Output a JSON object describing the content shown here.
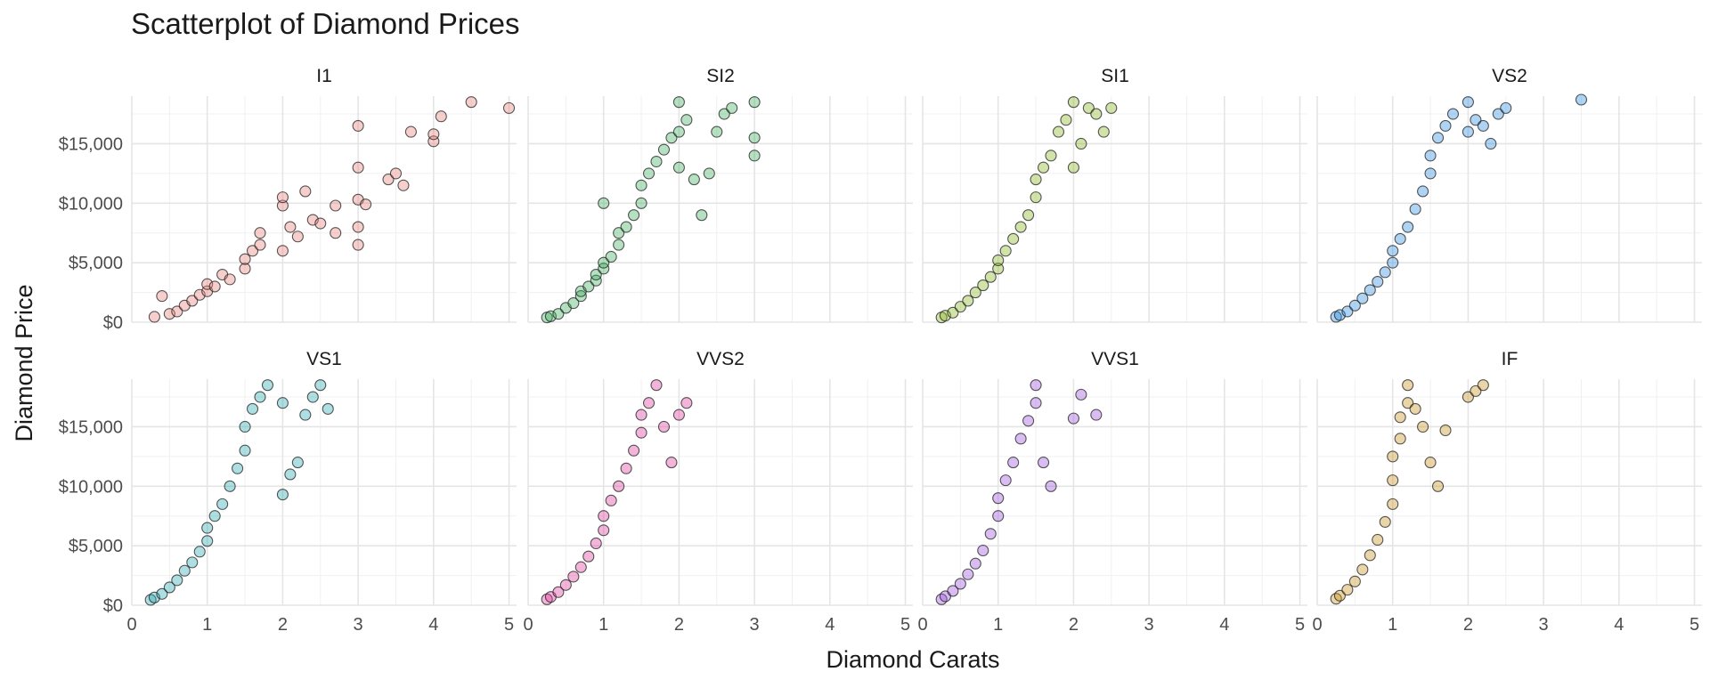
{
  "chart_data": {
    "type": "scatter",
    "title": "Scatterplot of Diamond Prices",
    "xlabel": "Diamond Carats",
    "ylabel": "Diamond Price",
    "xlim": [
      0,
      5.1
    ],
    "ylim": [
      0,
      19000
    ],
    "x_ticks": [
      0,
      1,
      2,
      3,
      4,
      5
    ],
    "y_ticks": [
      0,
      5000,
      10000,
      15000
    ],
    "y_tick_labels": [
      "$0",
      "$5,000",
      "$10,000",
      "$15,000"
    ],
    "grid": true,
    "legend": "none",
    "facet_layout": "2 rows x 4 columns",
    "panels": [
      {
        "name": "I1",
        "color": "#E8807B",
        "points": [
          [
            0.3,
            450
          ],
          [
            0.4,
            2200
          ],
          [
            0.5,
            700
          ],
          [
            0.6,
            900
          ],
          [
            0.7,
            1400
          ],
          [
            0.8,
            1800
          ],
          [
            0.9,
            2300
          ],
          [
            1.0,
            2600
          ],
          [
            1.0,
            3200
          ],
          [
            1.1,
            3000
          ],
          [
            1.2,
            4000
          ],
          [
            1.3,
            3600
          ],
          [
            1.5,
            4500
          ],
          [
            1.5,
            5300
          ],
          [
            1.6,
            6000
          ],
          [
            1.7,
            7500
          ],
          [
            1.7,
            6500
          ],
          [
            2.0,
            6000
          ],
          [
            2.0,
            9800
          ],
          [
            2.0,
            10500
          ],
          [
            2.1,
            8000
          ],
          [
            2.2,
            7200
          ],
          [
            2.3,
            11000
          ],
          [
            2.4,
            8600
          ],
          [
            2.5,
            8300
          ],
          [
            2.7,
            7500
          ],
          [
            2.7,
            9800
          ],
          [
            3.0,
            6500
          ],
          [
            3.0,
            8000
          ],
          [
            3.0,
            10300
          ],
          [
            3.0,
            16500
          ],
          [
            3.0,
            13000
          ],
          [
            3.1,
            9900
          ],
          [
            3.4,
            12000
          ],
          [
            3.5,
            12500
          ],
          [
            3.6,
            11500
          ],
          [
            3.7,
            16000
          ],
          [
            4.0,
            15200
          ],
          [
            4.0,
            15800
          ],
          [
            4.1,
            17300
          ],
          [
            4.5,
            18500
          ],
          [
            5.0,
            18000
          ]
        ]
      },
      {
        "name": "SI2",
        "color": "#3DAE5C",
        "points": [
          [
            0.25,
            400
          ],
          [
            0.3,
            500
          ],
          [
            0.4,
            700
          ],
          [
            0.5,
            1200
          ],
          [
            0.6,
            1600
          ],
          [
            0.7,
            2200
          ],
          [
            0.7,
            2600
          ],
          [
            0.8,
            3000
          ],
          [
            0.9,
            3500
          ],
          [
            0.9,
            4000
          ],
          [
            1.0,
            4500
          ],
          [
            1.0,
            5000
          ],
          [
            1.0,
            10000
          ],
          [
            1.1,
            5500
          ],
          [
            1.2,
            6500
          ],
          [
            1.2,
            7500
          ],
          [
            1.3,
            8000
          ],
          [
            1.4,
            9000
          ],
          [
            1.5,
            10000
          ],
          [
            1.5,
            11500
          ],
          [
            1.6,
            12500
          ],
          [
            1.7,
            13500
          ],
          [
            1.8,
            14500
          ],
          [
            1.9,
            15500
          ],
          [
            2.0,
            13000
          ],
          [
            2.0,
            16000
          ],
          [
            2.0,
            18500
          ],
          [
            2.1,
            17000
          ],
          [
            2.2,
            12000
          ],
          [
            2.3,
            9000
          ],
          [
            2.4,
            12500
          ],
          [
            2.5,
            16000
          ],
          [
            2.6,
            17500
          ],
          [
            2.7,
            18000
          ],
          [
            3.0,
            18500
          ],
          [
            3.0,
            15500
          ],
          [
            3.0,
            14000
          ]
        ]
      },
      {
        "name": "SI1",
        "color": "#88B520",
        "points": [
          [
            0.25,
            400
          ],
          [
            0.3,
            550
          ],
          [
            0.4,
            800
          ],
          [
            0.5,
            1300
          ],
          [
            0.6,
            1800
          ],
          [
            0.7,
            2500
          ],
          [
            0.8,
            3100
          ],
          [
            0.9,
            3800
          ],
          [
            1.0,
            4500
          ],
          [
            1.0,
            5200
          ],
          [
            1.1,
            6000
          ],
          [
            1.2,
            7000
          ],
          [
            1.3,
            8000
          ],
          [
            1.4,
            9000
          ],
          [
            1.5,
            10500
          ],
          [
            1.5,
            12000
          ],
          [
            1.6,
            13000
          ],
          [
            1.7,
            14000
          ],
          [
            1.8,
            16000
          ],
          [
            1.9,
            17000
          ],
          [
            2.0,
            18500
          ],
          [
            2.0,
            13000
          ],
          [
            2.1,
            15000
          ],
          [
            2.2,
            18000
          ],
          [
            2.3,
            17500
          ],
          [
            2.4,
            16000
          ],
          [
            2.5,
            18000
          ]
        ]
      },
      {
        "name": "VS2",
        "color": "#2E8BE0",
        "points": [
          [
            0.25,
            450
          ],
          [
            0.3,
            600
          ],
          [
            0.4,
            900
          ],
          [
            0.5,
            1400
          ],
          [
            0.6,
            2000
          ],
          [
            0.7,
            2700
          ],
          [
            0.8,
            3400
          ],
          [
            0.9,
            4200
          ],
          [
            1.0,
            5000
          ],
          [
            1.0,
            6000
          ],
          [
            1.1,
            7000
          ],
          [
            1.2,
            8000
          ],
          [
            1.3,
            9500
          ],
          [
            1.4,
            11000
          ],
          [
            1.5,
            12500
          ],
          [
            1.5,
            14000
          ],
          [
            1.6,
            15500
          ],
          [
            1.7,
            16500
          ],
          [
            1.8,
            17500
          ],
          [
            2.0,
            18500
          ],
          [
            2.0,
            16000
          ],
          [
            2.1,
            17000
          ],
          [
            2.2,
            16500
          ],
          [
            2.3,
            15000
          ],
          [
            2.4,
            17500
          ],
          [
            2.5,
            18000
          ],
          [
            3.5,
            18700
          ]
        ]
      },
      {
        "name": "VS1",
        "color": "#27A9B0",
        "points": [
          [
            0.25,
            450
          ],
          [
            0.3,
            650
          ],
          [
            0.4,
            950
          ],
          [
            0.5,
            1500
          ],
          [
            0.6,
            2100
          ],
          [
            0.7,
            2900
          ],
          [
            0.8,
            3600
          ],
          [
            0.9,
            4500
          ],
          [
            1.0,
            5400
          ],
          [
            1.0,
            6500
          ],
          [
            1.1,
            7500
          ],
          [
            1.2,
            8500
          ],
          [
            1.3,
            10000
          ],
          [
            1.4,
            11500
          ],
          [
            1.5,
            13000
          ],
          [
            1.5,
            15000
          ],
          [
            1.6,
            16500
          ],
          [
            1.7,
            17500
          ],
          [
            1.8,
            18500
          ],
          [
            2.0,
            17000
          ],
          [
            2.0,
            9300
          ],
          [
            2.1,
            11000
          ],
          [
            2.2,
            12000
          ],
          [
            2.3,
            16000
          ],
          [
            2.4,
            17500
          ],
          [
            2.5,
            18500
          ],
          [
            2.6,
            16500
          ]
        ]
      },
      {
        "name": "VVS2",
        "color": "#E03A9F",
        "points": [
          [
            0.25,
            500
          ],
          [
            0.3,
            700
          ],
          [
            0.4,
            1100
          ],
          [
            0.5,
            1700
          ],
          [
            0.6,
            2400
          ],
          [
            0.7,
            3200
          ],
          [
            0.8,
            4100
          ],
          [
            0.9,
            5200
          ],
          [
            1.0,
            6300
          ],
          [
            1.0,
            7500
          ],
          [
            1.1,
            8800
          ],
          [
            1.2,
            10000
          ],
          [
            1.3,
            11500
          ],
          [
            1.4,
            13000
          ],
          [
            1.5,
            14500
          ],
          [
            1.5,
            16000
          ],
          [
            1.6,
            17000
          ],
          [
            1.7,
            18500
          ],
          [
            1.8,
            15000
          ],
          [
            1.9,
            12000
          ],
          [
            2.0,
            16000
          ],
          [
            2.1,
            17000
          ]
        ]
      },
      {
        "name": "VVS1",
        "color": "#9B4FD9",
        "points": [
          [
            0.25,
            500
          ],
          [
            0.3,
            750
          ],
          [
            0.4,
            1200
          ],
          [
            0.5,
            1800
          ],
          [
            0.6,
            2600
          ],
          [
            0.7,
            3500
          ],
          [
            0.8,
            4600
          ],
          [
            0.9,
            6000
          ],
          [
            1.0,
            7500
          ],
          [
            1.0,
            9000
          ],
          [
            1.1,
            10500
          ],
          [
            1.2,
            12000
          ],
          [
            1.3,
            14000
          ],
          [
            1.4,
            15500
          ],
          [
            1.5,
            17000
          ],
          [
            1.5,
            18500
          ],
          [
            1.6,
            12000
          ],
          [
            1.7,
            10000
          ],
          [
            2.0,
            15700
          ],
          [
            2.1,
            17700
          ],
          [
            2.3,
            16000
          ]
        ]
      },
      {
        "name": "IF",
        "color": "#C7901E",
        "points": [
          [
            0.25,
            550
          ],
          [
            0.3,
            800
          ],
          [
            0.4,
            1300
          ],
          [
            0.5,
            2000
          ],
          [
            0.6,
            3000
          ],
          [
            0.7,
            4200
          ],
          [
            0.8,
            5500
          ],
          [
            0.9,
            7000
          ],
          [
            1.0,
            8500
          ],
          [
            1.0,
            10500
          ],
          [
            1.0,
            12500
          ],
          [
            1.1,
            14000
          ],
          [
            1.1,
            15800
          ],
          [
            1.2,
            17000
          ],
          [
            1.2,
            18500
          ],
          [
            1.3,
            16500
          ],
          [
            1.4,
            15000
          ],
          [
            1.5,
            12000
          ],
          [
            1.6,
            10000
          ],
          [
            1.7,
            14700
          ],
          [
            2.0,
            17500
          ],
          [
            2.1,
            18000
          ],
          [
            2.2,
            18500
          ]
        ]
      }
    ]
  }
}
